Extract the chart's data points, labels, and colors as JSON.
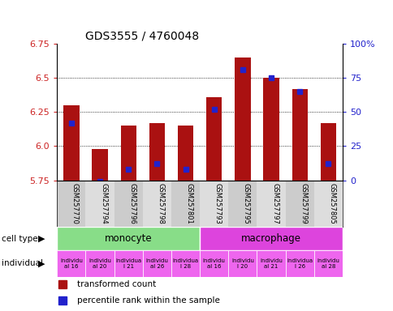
{
  "title": "GDS3555 / 4760048",
  "samples": [
    "GSM257770",
    "GSM257794",
    "GSM257796",
    "GSM257798",
    "GSM257801",
    "GSM257793",
    "GSM257795",
    "GSM257797",
    "GSM257799",
    "GSM257805"
  ],
  "bar_values": [
    6.3,
    5.98,
    6.15,
    6.17,
    6.15,
    6.36,
    6.65,
    6.5,
    6.42,
    6.17
  ],
  "blue_values": [
    6.17,
    5.745,
    5.83,
    5.87,
    5.83,
    6.27,
    6.56,
    6.5,
    6.4,
    5.87
  ],
  "ymin": 5.75,
  "ymax": 6.75,
  "left_yticks": [
    5.75,
    6.0,
    6.25,
    6.5,
    6.75
  ],
  "right_yticks": [
    0,
    25,
    50,
    75,
    100
  ],
  "bar_color": "#aa1111",
  "blue_color": "#2222cc",
  "cell_type_groups": [
    {
      "label": "monocyte",
      "start": 0,
      "end": 4,
      "color": "#88dd88"
    },
    {
      "label": "macrophage",
      "start": 5,
      "end": 9,
      "color": "#dd44dd"
    }
  ],
  "individual_labels": [
    "individu\nal 16",
    "individu\nal 20",
    "individua\nl 21",
    "individu\nal 26",
    "individua\nl 28",
    "individu\nal 16",
    "individu\nl 20",
    "individu\nal 21",
    "individua\nl 26",
    "individu\nal 28"
  ],
  "individual_bg": "#ee66ee",
  "legend_red": "transformed count",
  "legend_blue": "percentile rank within the sample",
  "bar_width": 0.55
}
